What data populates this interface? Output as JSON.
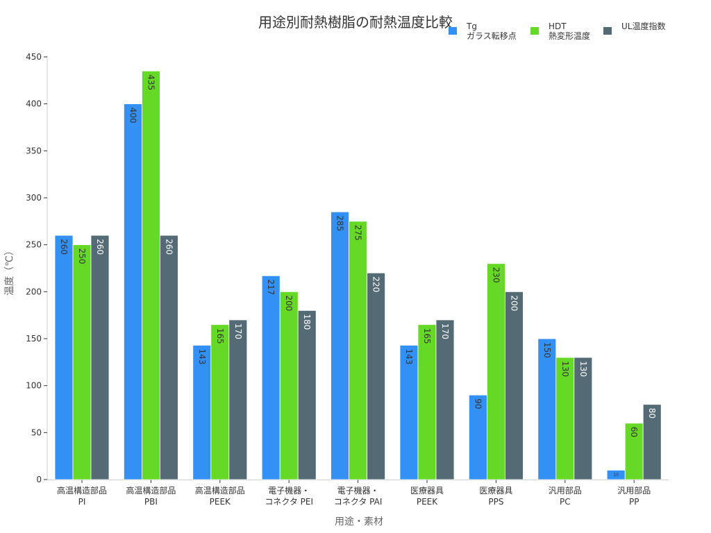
{
  "chart_data": {
    "type": "bar",
    "title": "用途別耐熱樹脂の耐熱温度比較",
    "xlabel": "用途・素材",
    "ylabel": "温度（℃）",
    "ylim": [
      0,
      450
    ],
    "yticks": [
      0,
      50,
      100,
      150,
      200,
      250,
      300,
      350,
      400,
      450
    ],
    "legend_position": "top-right",
    "grid": false,
    "categories": [
      [
        "高温構造部品",
        "PI"
      ],
      [
        "高温構造部品",
        "PBI"
      ],
      [
        "高温構造部品",
        "PEEK"
      ],
      [
        "電子機器・",
        "コネクタ PEI"
      ],
      [
        "電子機器・",
        "コネクタ PAI"
      ],
      [
        "医療器具",
        "PEEK"
      ],
      [
        "医療器具",
        "PPS"
      ],
      [
        "汎用部品",
        "PC"
      ],
      [
        "汎用部品",
        "PP"
      ]
    ],
    "series": [
      {
        "name": [
          "Tg",
          "ガラス転移点"
        ],
        "color": "#3391f5",
        "values": [
          260,
          400,
          143,
          217,
          285,
          143,
          90,
          150,
          10
        ],
        "labels": [
          "260",
          "400",
          "143",
          "217",
          "285",
          "143",
          "90",
          "150",
          "10"
        ]
      },
      {
        "name": [
          "HDT",
          "熱変形温度"
        ],
        "color": "#66d926",
        "values": [
          250,
          435,
          165,
          200,
          275,
          165,
          230,
          130,
          60
        ],
        "labels": [
          "250",
          "435",
          "165",
          "200",
          "275",
          "165",
          "230",
          "130",
          "60"
        ]
      },
      {
        "name": [
          "UL温度指数"
        ],
        "color": "#546b75",
        "values": [
          260,
          260,
          170,
          180,
          220,
          170,
          200,
          130,
          80
        ],
        "labels": [
          "260",
          "260",
          "170",
          "180",
          "220",
          "170",
          "200",
          "130",
          "80"
        ]
      }
    ]
  }
}
